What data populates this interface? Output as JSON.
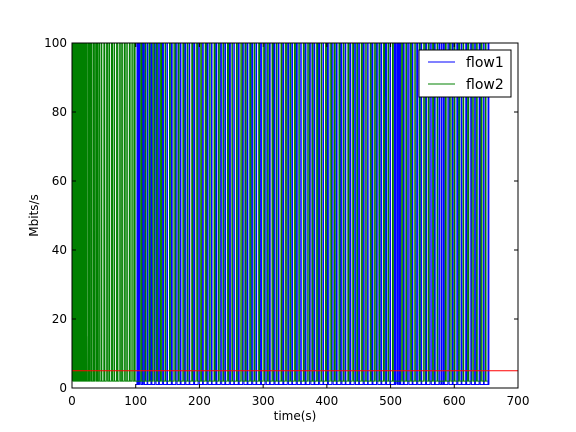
{
  "chart_data": {
    "type": "line",
    "title": "",
    "xlabel": "time(s)",
    "ylabel": "Mbits/s",
    "xlim": [
      0,
      700
    ],
    "ylim": [
      0,
      100
    ],
    "xticks": [
      0,
      100,
      200,
      300,
      400,
      500,
      600,
      700
    ],
    "yticks": [
      0,
      20,
      40,
      60,
      80,
      100
    ],
    "xtick_labels": [
      "0",
      "100",
      "200",
      "300",
      "400",
      "500",
      "600",
      "700"
    ],
    "ytick_labels": [
      "0",
      "20",
      "40",
      "60",
      "80",
      "100"
    ],
    "grid": false,
    "legend_position": "top-right",
    "reference_line": {
      "y": 5,
      "color": "#ff0000"
    },
    "series": [
      {
        "name": "flow1",
        "color": "#0000ff",
        "x_range": [
          100,
          655
        ],
        "baseline": 1,
        "peak": 100,
        "burst_times": [
          102,
          104,
          106,
          110,
          112,
          118,
          124,
          130,
          136,
          142,
          149,
          156,
          163,
          170,
          177,
          184,
          191,
          198,
          205,
          212,
          219,
          226,
          233,
          240,
          247,
          254,
          261,
          268,
          275,
          282,
          289,
          296,
          303,
          310,
          317,
          324,
          331,
          338,
          345,
          352,
          359,
          366,
          373,
          380,
          387,
          394,
          401,
          408,
          415,
          422,
          429,
          436,
          443,
          450,
          457,
          464,
          471,
          478,
          485,
          492,
          499,
          506,
          508,
          510,
          512,
          515,
          520,
          527,
          534,
          541,
          548,
          555,
          562,
          569,
          576,
          580,
          583,
          590,
          597,
          604,
          611,
          618,
          625,
          632,
          639,
          646,
          653
        ]
      },
      {
        "name": "flow2",
        "color": "#008000",
        "x_range": [
          0,
          652
        ],
        "baseline": 2,
        "peak": 100,
        "burst_times": [
          0,
          1,
          2,
          3,
          4,
          5,
          6,
          7,
          8,
          9,
          10,
          11,
          12,
          13,
          14,
          15,
          16,
          17,
          18,
          19,
          20,
          22,
          24,
          26,
          28,
          30,
          33,
          36,
          39,
          42,
          46,
          50,
          54,
          58,
          62,
          66,
          70,
          74,
          78,
          82,
          86,
          90,
          94,
          98,
          108,
          115,
          121,
          127,
          133,
          139,
          146,
          153,
          160,
          167,
          174,
          181,
          188,
          195,
          202,
          209,
          216,
          223,
          230,
          237,
          244,
          251,
          258,
          265,
          272,
          279,
          286,
          293,
          300,
          307,
          314,
          321,
          328,
          335,
          342,
          349,
          356,
          363,
          370,
          377,
          384,
          391,
          398,
          405,
          412,
          419,
          426,
          433,
          440,
          447,
          454,
          461,
          468,
          475,
          482,
          489,
          496,
          503,
          517,
          524,
          531,
          538,
          545,
          552,
          559,
          566,
          573,
          586,
          593,
          600,
          607,
          614,
          621,
          628,
          635,
          642,
          649
        ],
        "low_spikes": [
          {
            "x": 10,
            "y": 25
          },
          {
            "x": 20,
            "y": 29
          },
          {
            "x": 24,
            "y": 15
          },
          {
            "x": 40,
            "y": 12
          }
        ]
      }
    ]
  }
}
